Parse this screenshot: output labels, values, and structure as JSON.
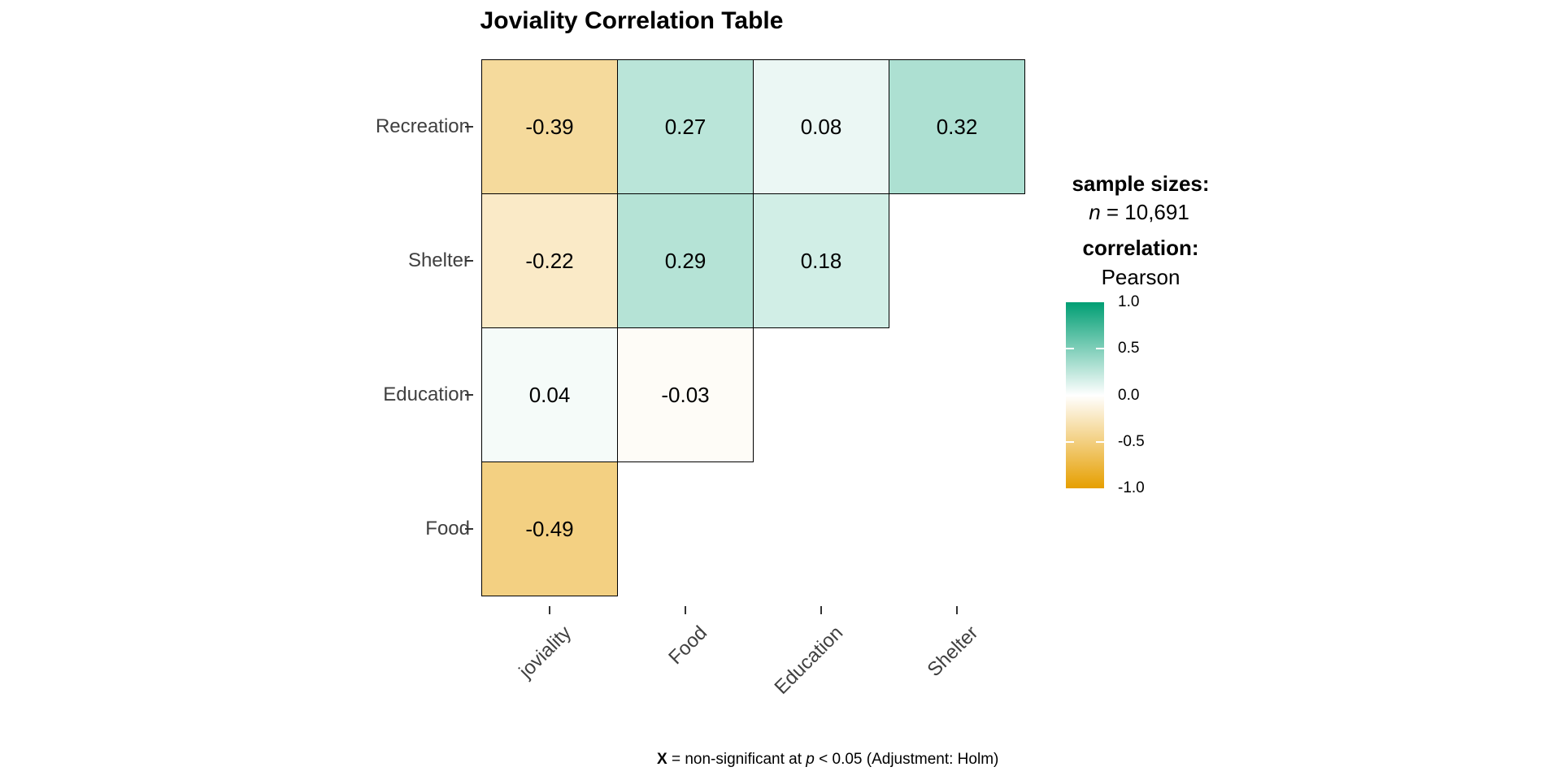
{
  "chart_data": {
    "type": "heatmap",
    "title": "Joviality Correlation Table",
    "y_categories": [
      "Recreation",
      "Shelter",
      "Education",
      "Food"
    ],
    "x_categories": [
      "joviality",
      "Food",
      "Education",
      "Shelter"
    ],
    "matrix": [
      [
        -0.39,
        0.27,
        0.08,
        0.32
      ],
      [
        -0.22,
        0.29,
        0.18,
        null
      ],
      [
        0.04,
        -0.03,
        null,
        null
      ],
      [
        -0.49,
        null,
        null,
        null
      ]
    ],
    "colormap": {
      "negative": "#E69F00",
      "mid": "#FFFFFF",
      "positive": "#009E73",
      "range": [
        -1,
        1
      ]
    },
    "colorbar_ticks": [
      "1.0",
      "0.5",
      "0.0",
      "-0.5",
      "-1.0"
    ],
    "legend": {
      "sample_sizes_label": "sample sizes:",
      "n_label": "n",
      "n_value": " = 10,691",
      "correlation_label": "correlation:",
      "correlation_type": "Pearson"
    },
    "caption": {
      "x": "X",
      "mid": " = non-significant at ",
      "p": "p",
      "tail": " < 0.05 (Adjustment: Holm)"
    },
    "grid": "off",
    "legend_position": "right"
  }
}
